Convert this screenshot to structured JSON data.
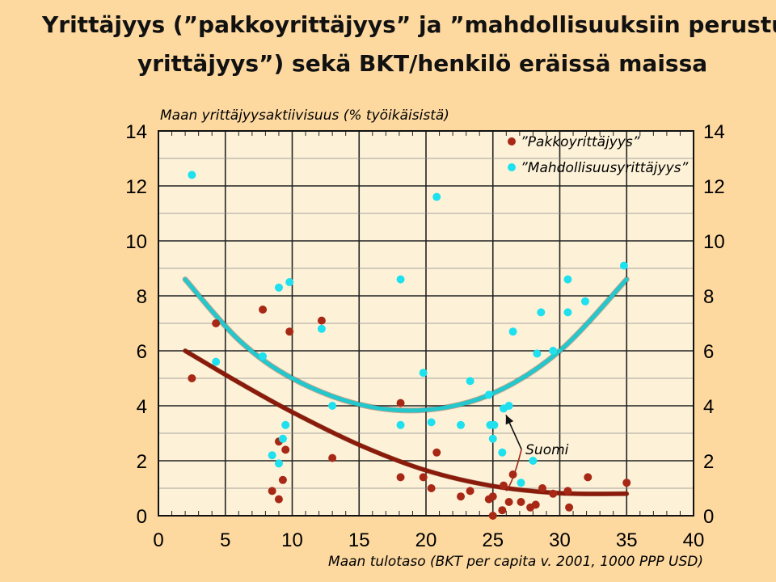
{
  "title": {
    "line1": "Yrittäjyys (”pakkoyrittäjyys” ja ”mahdollisuuksiin perustu",
    "line2": "yrittäjyys”) sekä BKT/henkilö eräissä maissa"
  },
  "colors": {
    "background": "#fdd9a0",
    "plot_area": "#fdf2d8",
    "series_necessity": "#a82816",
    "series_opportunity": "#1ee0ee",
    "fit_necessity": "#8a1a0a",
    "fit_opportunity": "#22c8cc"
  },
  "chart_data": {
    "type": "scatter",
    "ylabel": "Maan yrittäjyysaktiivisuus (% työikäisistä)",
    "xlabel": "Maan tulotaso (BKT per capita v. 2001, 1000 PPP USD)",
    "xlim": [
      0,
      40
    ],
    "ylim": [
      0,
      14
    ],
    "x_ticks": [
      "0",
      "5",
      "10",
      "15",
      "20",
      "25",
      "30",
      "35",
      "40"
    ],
    "y_ticks": [
      "0",
      "2",
      "4",
      "6",
      "8",
      "10",
      "12",
      "14"
    ],
    "y_ticks_right": [
      "0",
      "2",
      "4",
      "6",
      "8",
      "10",
      "12",
      "14"
    ],
    "grid": true,
    "legend_position": "top-right",
    "series": [
      {
        "name": "”Pakkoyrittäjyys”",
        "color": "#a82816",
        "points": [
          [
            2.5,
            5.0
          ],
          [
            4.3,
            7.0
          ],
          [
            7.8,
            7.5
          ],
          [
            8.5,
            0.9
          ],
          [
            9.0,
            0.6
          ],
          [
            9.0,
            2.7
          ],
          [
            9.3,
            1.3
          ],
          [
            9.5,
            2.4
          ],
          [
            9.8,
            6.7
          ],
          [
            12.2,
            7.1
          ],
          [
            13.0,
            2.1
          ],
          [
            18.1,
            4.1
          ],
          [
            18.1,
            1.4
          ],
          [
            19.8,
            1.4
          ],
          [
            20.4,
            1.0
          ],
          [
            20.8,
            2.3
          ],
          [
            22.6,
            0.7
          ],
          [
            23.3,
            0.9
          ],
          [
            24.7,
            0.6
          ],
          [
            25.0,
            0.0
          ],
          [
            25.0,
            0.7
          ],
          [
            25.8,
            1.1
          ],
          [
            25.7,
            0.2
          ],
          [
            26.2,
            0.5
          ],
          [
            26.5,
            1.5
          ],
          [
            27.1,
            0.5
          ],
          [
            27.8,
            0.3
          ],
          [
            28.2,
            0.4
          ],
          [
            28.7,
            1.0
          ],
          [
            29.5,
            0.8
          ],
          [
            30.6,
            0.9
          ],
          [
            30.7,
            0.3
          ],
          [
            32.1,
            1.4
          ],
          [
            35.0,
            1.2
          ]
        ]
      },
      {
        "name": "”Mahdollisuusyrittäjyys”",
        "color": "#1ee0ee",
        "points": [
          [
            2.5,
            12.4
          ],
          [
            4.3,
            5.6
          ],
          [
            7.8,
            5.8
          ],
          [
            8.5,
            2.2
          ],
          [
            9.0,
            8.3
          ],
          [
            9.0,
            1.9
          ],
          [
            9.3,
            2.8
          ],
          [
            9.5,
            3.3
          ],
          [
            9.8,
            8.5
          ],
          [
            12.2,
            6.8
          ],
          [
            13.0,
            4.0
          ],
          [
            18.1,
            8.6
          ],
          [
            18.1,
            3.3
          ],
          [
            19.8,
            5.2
          ],
          [
            20.4,
            3.4
          ],
          [
            20.8,
            11.6
          ],
          [
            22.6,
            3.3
          ],
          [
            23.3,
            4.9
          ],
          [
            24.7,
            4.4
          ],
          [
            24.8,
            3.3
          ],
          [
            25.1,
            3.3
          ],
          [
            25.0,
            2.8
          ],
          [
            25.7,
            2.3
          ],
          [
            25.8,
            3.9
          ],
          [
            26.2,
            4.0
          ],
          [
            26.5,
            6.7
          ],
          [
            27.1,
            1.2
          ],
          [
            28.0,
            2.0
          ],
          [
            28.3,
            5.9
          ],
          [
            28.6,
            7.4
          ],
          [
            29.5,
            6.0
          ],
          [
            30.6,
            8.6
          ],
          [
            30.6,
            7.4
          ],
          [
            31.9,
            7.8
          ],
          [
            34.8,
            9.1
          ]
        ]
      }
    ],
    "trend_lines": [
      {
        "series": "”Pakkoyrittäjyys”",
        "x": [
          2,
          6,
          10,
          15,
          20,
          25,
          30,
          35
        ],
        "y": [
          6.0,
          4.85,
          3.77,
          2.58,
          1.65,
          1.08,
          0.82,
          0.8
        ]
      },
      {
        "series": "”Mahdollisuusyrittäjyys”",
        "x": [
          2,
          6,
          10,
          15,
          20,
          25,
          30,
          35
        ],
        "y": [
          8.6,
          6.4,
          5.0,
          4.05,
          3.85,
          4.45,
          6.0,
          8.6
        ]
      }
    ],
    "annotations": [
      {
        "text": "Suomi",
        "x": 27.5,
        "y": 2.3,
        "points_to": [
          25.8,
          3.9
        ]
      }
    ]
  }
}
